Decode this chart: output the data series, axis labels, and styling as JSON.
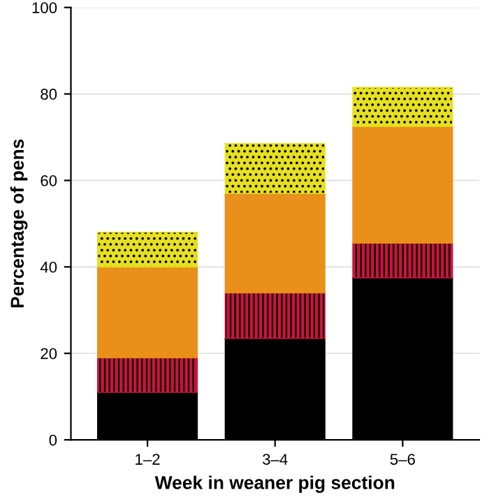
{
  "chart_data": {
    "type": "bar",
    "stacked": true,
    "xlabel": "Week in weaner pig section",
    "ylabel": "Percentage of pens",
    "categories": [
      "1–2",
      "3–4",
      "5–6"
    ],
    "series": [
      {
        "color": "#000000",
        "values": [
          11,
          23.5,
          37.5
        ]
      },
      {
        "color": "#c8143c",
        "values": [
          8,
          10.5,
          8
        ]
      },
      {
        "color": "#e8901a",
        "values": [
          21,
          23,
          27
        ]
      },
      {
        "color": "#e6e020",
        "values": [
          8,
          11.5,
          9
        ]
      }
    ],
    "ylim": [
      0,
      100
    ],
    "yticks": [
      0,
      20,
      40,
      60,
      80,
      100
    ],
    "grid": "y",
    "legend": false
  }
}
